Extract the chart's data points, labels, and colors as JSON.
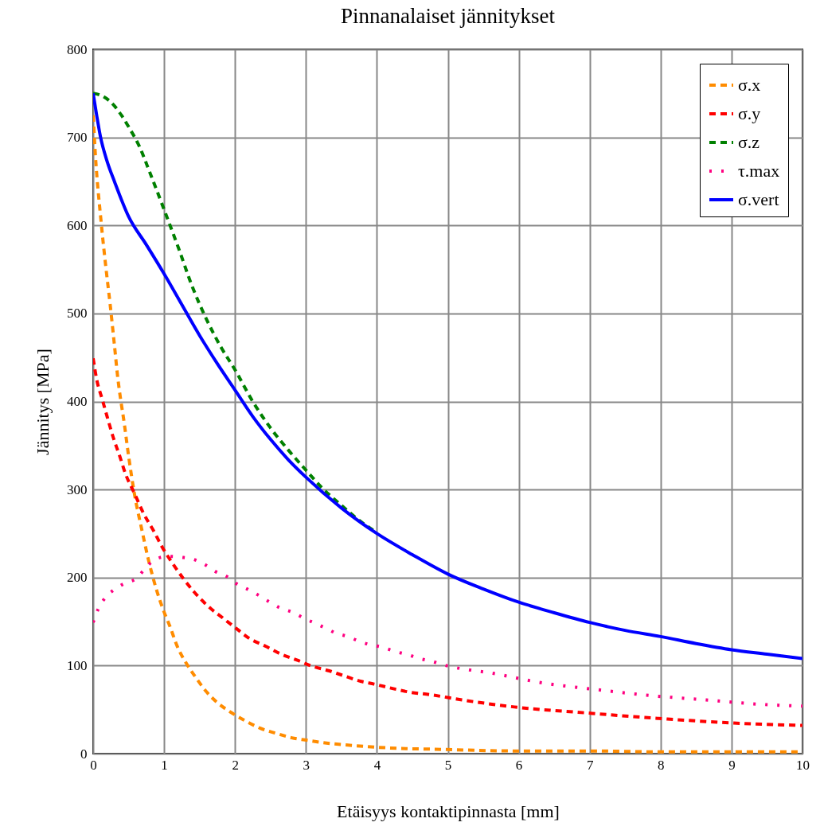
{
  "chart_data": {
    "type": "line",
    "title": "Pinnanalaiset jännitykset",
    "xlabel": "Etäisyys kontaktipinnasta [mm]",
    "ylabel": "Jännitys [MPa]",
    "xlim": [
      0,
      10
    ],
    "ylim": [
      0,
      800
    ],
    "xticks": [
      0,
      1,
      2,
      3,
      4,
      5,
      6,
      7,
      8,
      9,
      10
    ],
    "yticks": [
      0,
      100,
      200,
      300,
      400,
      500,
      600,
      700,
      800
    ],
    "grid": true,
    "legend": "top right",
    "series": [
      {
        "name": "σ.x",
        "color": "#ff8c00",
        "line_style": "dashed",
        "x": [
          0,
          0.03,
          0.11,
          0.18,
          0.24,
          0.3,
          0.35,
          0.39,
          0.43,
          0.5,
          0.58,
          0.69,
          0.78,
          0.89,
          0.99,
          1.08,
          1.19,
          1.31,
          1.46,
          1.6,
          1.75,
          1.94,
          2.13,
          2.35,
          2.58,
          2.8,
          3.03,
          3.29,
          3.55,
          3.85,
          4.3,
          4.82,
          6,
          7,
          8,
          9,
          10
        ],
        "values": [
          725,
          682,
          606,
          552,
          510,
          464,
          425,
          401,
          380,
          338,
          296,
          253,
          220,
          187,
          163,
          145,
          121,
          103,
          85,
          70,
          58,
          47,
          38,
          29,
          23,
          18,
          15,
          12,
          10,
          8,
          6,
          5,
          3,
          3,
          2,
          2,
          2
        ]
      },
      {
        "name": "σ.y",
        "color": "#ff0000",
        "line_style": "dashed",
        "x": [
          0,
          0.05,
          0.13,
          0.2,
          0.28,
          0.37,
          0.46,
          0.58,
          0.71,
          0.86,
          0.97,
          1.12,
          1.27,
          1.42,
          1.64,
          1.83,
          2.02,
          2.2,
          2.43,
          2.65,
          2.88,
          3.1,
          3.33,
          3.55,
          3.78,
          3.96,
          4.22,
          4.45,
          4.75,
          5.2,
          5.94,
          6.99,
          7.97,
          8.97,
          10
        ],
        "values": [
          449,
          425,
          402,
          382,
          360,
          339,
          317,
          296,
          273,
          252,
          235,
          216,
          199,
          184,
          166,
          154,
          142,
          131,
          122,
          113,
          106,
          99,
          94,
          88,
          82,
          79,
          74,
          70,
          67,
          61,
          53,
          46,
          40,
          35,
          32
        ]
      },
      {
        "name": "σ.z",
        "color": "#008000",
        "line_style": "dashed",
        "x": [
          0,
          0.1,
          0.25,
          0.4,
          0.5,
          0.65,
          0.8,
          1,
          1.2,
          1.4,
          1.6,
          1.8,
          2,
          2.25,
          2.5,
          2.75,
          3,
          3.25,
          3.5,
          3.75,
          4
        ],
        "values": [
          750,
          748,
          740,
          725,
          712,
          690,
          660,
          618,
          575,
          530,
          493,
          462,
          436,
          400,
          370,
          345,
          322,
          300,
          282,
          265,
          251
        ]
      },
      {
        "name": "τ.max",
        "color": "#ff0080",
        "line_style": "dotted",
        "x": [
          0,
          0.07,
          0.18,
          0.31,
          0.46,
          0.61,
          0.73,
          0.88,
          1.06,
          1.25,
          1.44,
          1.59,
          1.72,
          1.89,
          2.04,
          2.17,
          2.33,
          2.47,
          2.65,
          2.8,
          2.99,
          3.16,
          3.29,
          3.42,
          3.59,
          3.74,
          3.89,
          4.07,
          4.26,
          4.45,
          4.6,
          4.77,
          4.93,
          5.65,
          6.36,
          7.07,
          7.85,
          8.64,
          9.41,
          10
        ],
        "values": [
          149,
          164,
          178,
          187,
          194,
          199,
          210,
          221,
          224,
          223,
          220,
          214,
          207,
          201,
          192,
          187,
          180,
          173,
          165,
          161,
          153,
          147,
          142,
          137,
          133,
          128,
          124,
          121,
          116,
          112,
          108,
          105,
          101,
          91,
          80,
          73,
          66,
          61,
          56,
          54
        ]
      },
      {
        "name": "σ.vert",
        "color": "#0000ff",
        "line_style": "solid",
        "x": [
          0,
          0.05,
          0.1,
          0.2,
          0.3,
          0.5,
          0.75,
          1,
          1.25,
          1.5,
          1.75,
          2,
          2.25,
          2.5,
          2.75,
          3,
          3.5,
          4,
          4.5,
          5,
          5.5,
          6,
          6.5,
          7,
          7.5,
          8,
          8.5,
          9,
          9.5,
          10
        ],
        "values": [
          750,
          725,
          702,
          672,
          650,
          610,
          578,
          545,
          510,
          475,
          443,
          413,
          383,
          357,
          334,
          314,
          279,
          250,
          226,
          204,
          187,
          172,
          160,
          149,
          140,
          133,
          125,
          118,
          113,
          108
        ]
      }
    ]
  }
}
